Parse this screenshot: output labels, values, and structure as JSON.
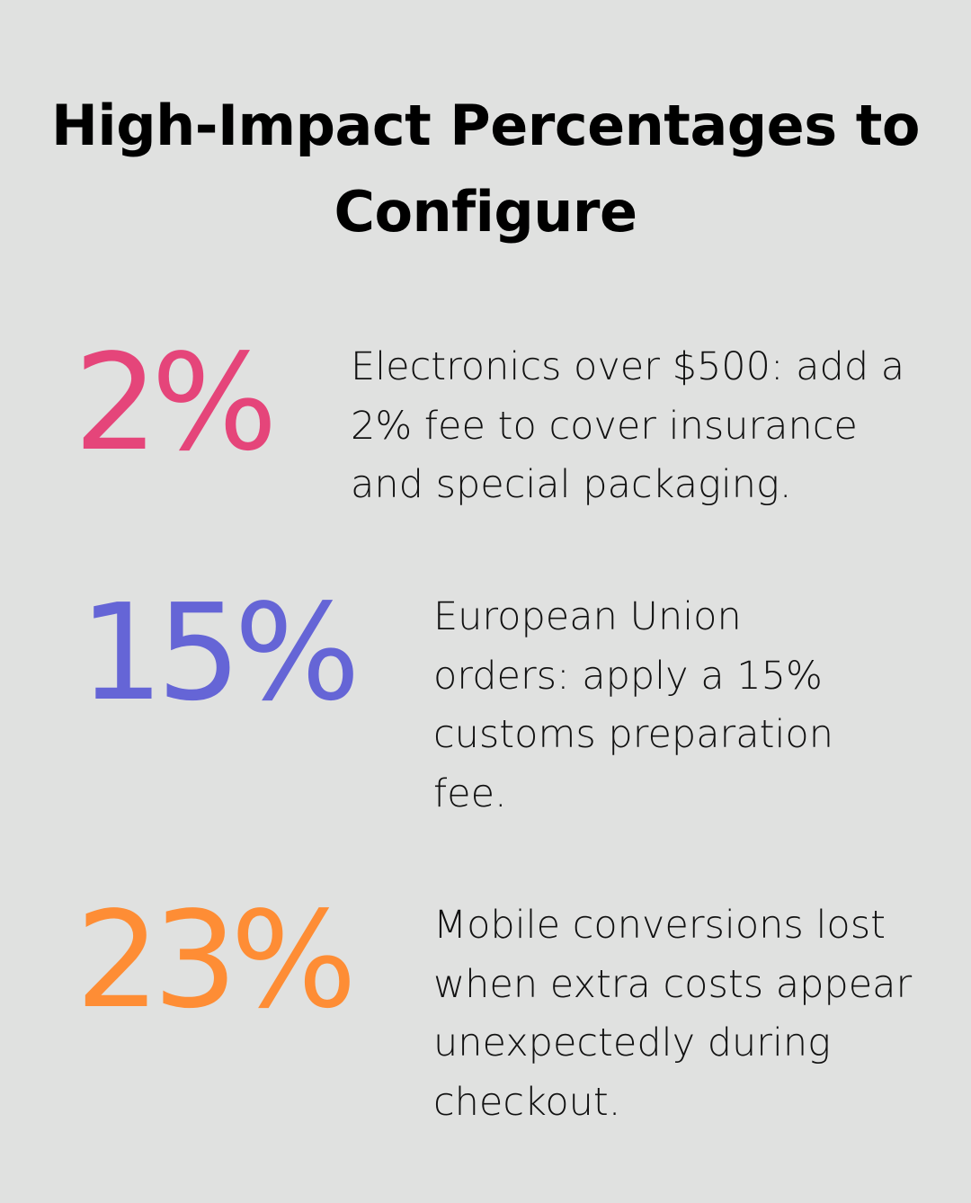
{
  "title": "High-Impact Percentages to Configure",
  "stats": [
    {
      "value": "2%",
      "color": "#e5457a",
      "text": "Electronics over $500: add a 2% fee to cover insurance and special packaging."
    },
    {
      "value": "15%",
      "color": "#6565d6",
      "text": "European Union orders: apply a 15% customs preparation fee."
    },
    {
      "value": "23%",
      "color": "#fe8d35",
      "text": "Mobile conversions lost when extra costs appear unexpectedly during checkout."
    }
  ]
}
